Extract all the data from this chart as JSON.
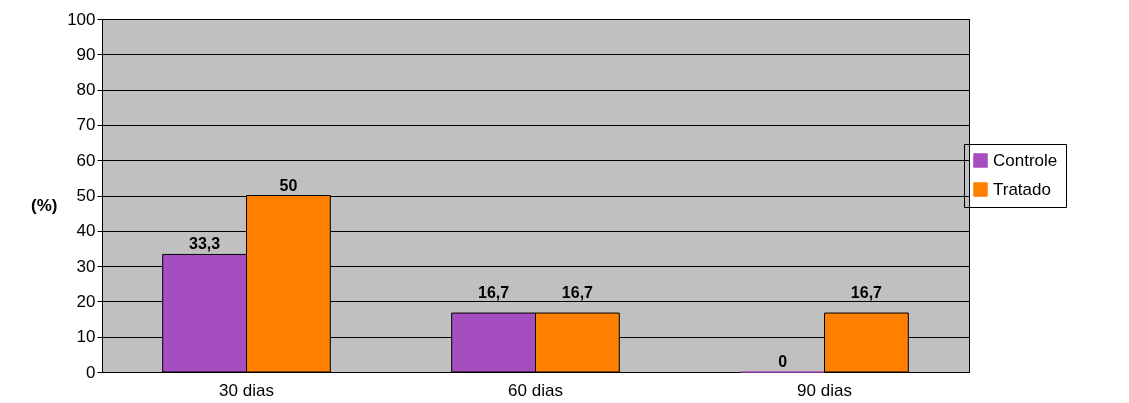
{
  "chart_data": {
    "type": "bar",
    "ylabel": "(%)",
    "categories": [
      "30 dias",
      "60 dias",
      "90 dias"
    ],
    "series": [
      {
        "name": "Controle",
        "color": "#a64dbf",
        "values": [
          33.3,
          16.7,
          0
        ],
        "value_labels": [
          "33,3",
          "16,7",
          "0"
        ]
      },
      {
        "name": "Tratado",
        "color": "#ff8000",
        "values": [
          50,
          16.7,
          16.7
        ],
        "value_labels": [
          "50",
          "16,7",
          "16,7"
        ]
      }
    ],
    "ylim": [
      0,
      100
    ],
    "yticks": [
      0,
      10,
      20,
      30,
      40,
      50,
      60,
      70,
      80,
      90,
      100
    ],
    "grid": "y",
    "legend": "right"
  }
}
